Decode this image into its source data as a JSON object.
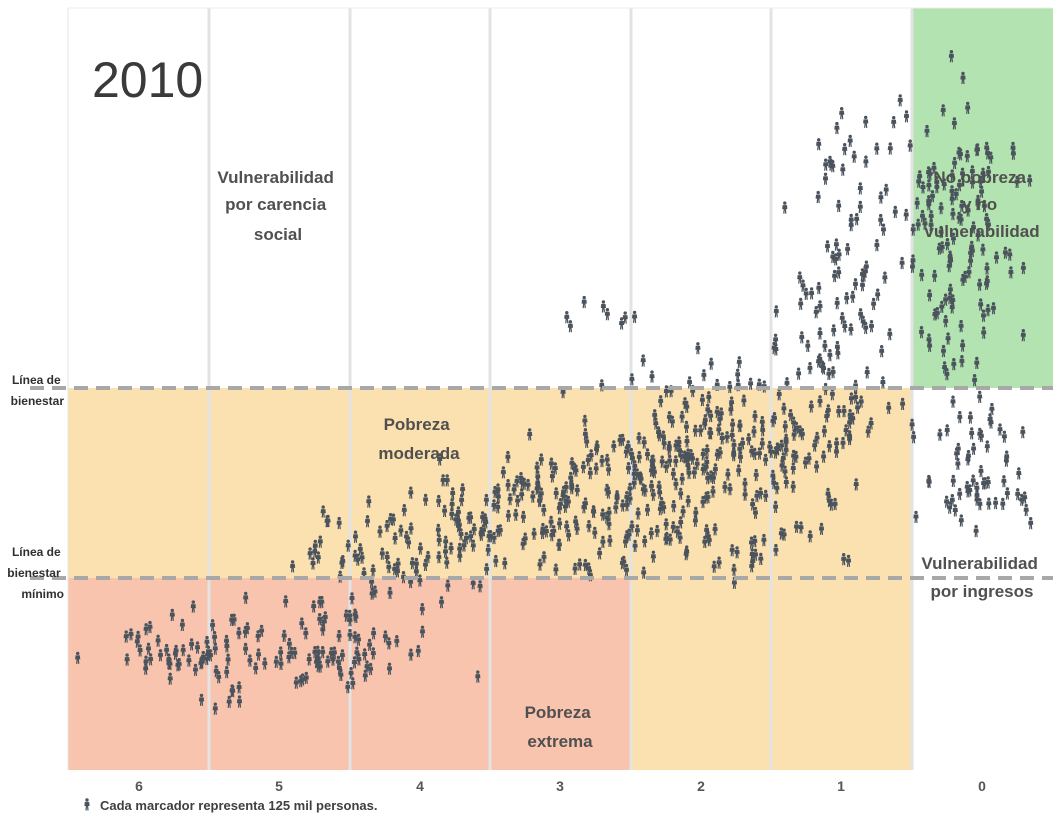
{
  "chart_data": {
    "type": "scatter",
    "title": "2010",
    "x_ticks": [
      "6",
      "5",
      "4",
      "3",
      "2",
      "1",
      "0"
    ],
    "reference_lines": [
      {
        "name": "bienestar",
        "label_lines": [
          "Línea de",
          "bienestar"
        ]
      },
      {
        "name": "bienestar_minimo",
        "label_lines": [
          "Línea de",
          "bienestar",
          "mínimo"
        ]
      }
    ],
    "zones": [
      {
        "name": "vulnerabilidad_carencia",
        "label_lines": [
          "Vulnerabilidad",
          "por carencia",
          "social"
        ],
        "color": "#ffffff"
      },
      {
        "name": "no_pobreza",
        "label_lines": [
          "No pobreza",
          "y no",
          "vulnerabilidad"
        ],
        "color": "#b2e3b0"
      },
      {
        "name": "pobreza_moderada",
        "label_lines": [
          "Pobreza",
          "moderada"
        ],
        "color": "#fbe0b0"
      },
      {
        "name": "vulnerabilidad_ingresos",
        "label_lines": [
          "Vulnerabilidad",
          "por ingresos"
        ],
        "color": "#ffffff"
      },
      {
        "name": "pobreza_extrema",
        "label_lines": [
          "Pobreza",
          "extrema"
        ],
        "color": "#f8c4ae"
      }
    ],
    "marker_color": "#4b535c",
    "footnote": "Cada marcador representa 125 mil personas."
  }
}
